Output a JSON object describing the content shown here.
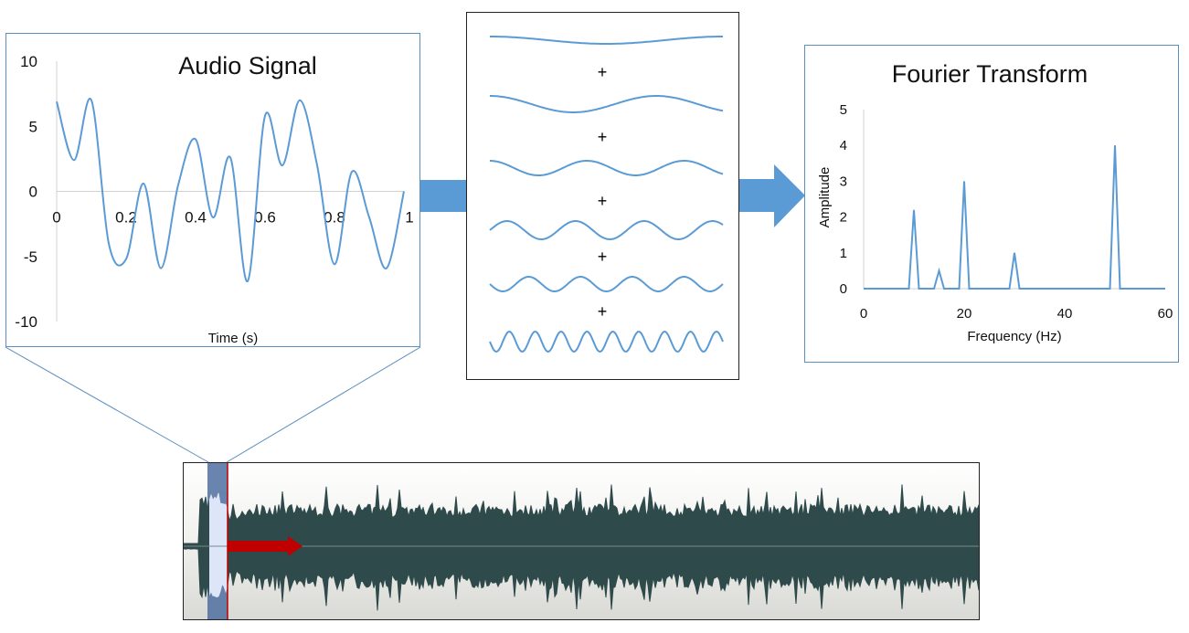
{
  "audio_signal": {
    "title": "Audio Signal",
    "xlabel": "Time (s)",
    "x_ticks": [
      "0",
      "0.2",
      "0.4",
      "0.6",
      "0.8",
      "1"
    ],
    "y_ticks": [
      "10",
      "5",
      "0",
      "-5",
      "-10"
    ]
  },
  "decomposition": {
    "plus_sign": "+"
  },
  "fourier_transform": {
    "title": "Fourier Transform",
    "xlabel": "Frequency (Hz)",
    "ylabel": "Amplitude",
    "x_ticks": [
      "0",
      "20",
      "40",
      "60"
    ],
    "y_ticks": [
      "5",
      "4",
      "3",
      "2",
      "1",
      "0"
    ]
  },
  "colors": {
    "line": "#5b9bd5",
    "arrow": "#5b9bd5",
    "waveform": "#2f4a4a",
    "highlight": "#4f6fa0",
    "playhead_arrow": "#c00000"
  },
  "chart_data": [
    {
      "type": "line",
      "title": "Audio Signal",
      "xlabel": "Time (s)",
      "ylabel": "",
      "xlim": [
        0,
        1
      ],
      "ylim": [
        -10,
        10
      ],
      "x": [
        0,
        0.05,
        0.1,
        0.15,
        0.2,
        0.25,
        0.3,
        0.35,
        0.4,
        0.45,
        0.5,
        0.55,
        0.6,
        0.65,
        0.7,
        0.75,
        0.8,
        0.85,
        0.9,
        0.95,
        1
      ],
      "y": [
        6.9,
        2.4,
        7.0,
        -4.0,
        -5.2,
        0.6,
        -5.9,
        0.5,
        4.0,
        -2.0,
        2.6,
        -6.9,
        5.8,
        2.0,
        7.0,
        2.0,
        -5.6,
        1.5,
        -2.0,
        -5.9,
        0
      ]
    },
    {
      "type": "line",
      "title": "Fourier Transform",
      "xlabel": "Frequency (Hz)",
      "ylabel": "Amplitude",
      "xlim": [
        0,
        60
      ],
      "ylim": [
        0,
        5
      ],
      "x": [
        0,
        9,
        10,
        11,
        14,
        15,
        16,
        19,
        20,
        21,
        29,
        30,
        31,
        49,
        50,
        51,
        60
      ],
      "y": [
        0,
        0,
        2.2,
        0,
        0,
        0.5,
        0,
        0,
        3.0,
        0,
        0,
        1.0,
        0,
        0,
        4.0,
        0,
        0
      ]
    }
  ]
}
